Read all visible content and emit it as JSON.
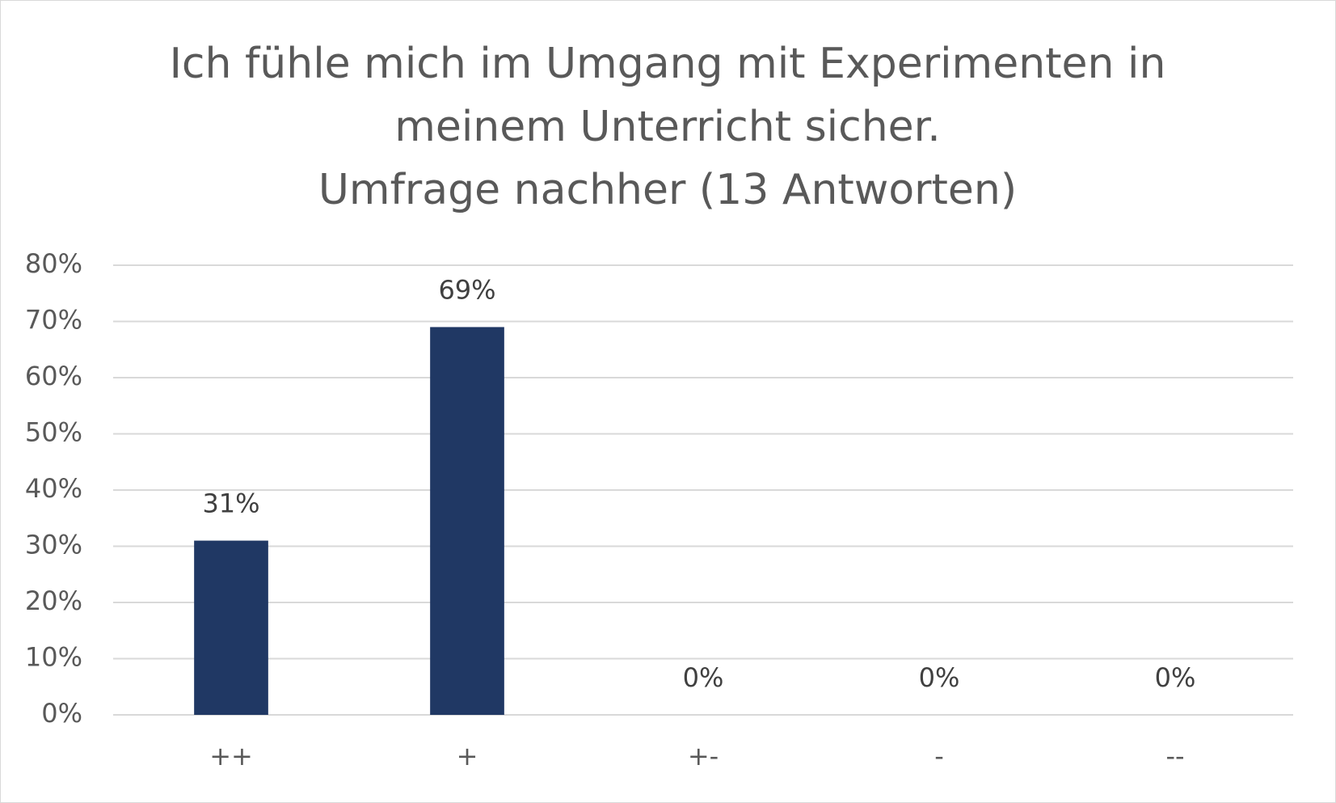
{
  "chart_data": {
    "type": "bar",
    "title": "Ich fühle mich im Umgang mit Experimenten in meinem Unterricht sicher.",
    "subtitle": "Umfrage nachher (13 Antworten)",
    "categories": [
      "++",
      "+",
      "+-",
      "-",
      "--"
    ],
    "values": [
      31,
      69,
      0,
      0,
      0
    ],
    "value_labels": [
      "31%",
      "69%",
      "0%",
      "0%",
      "0%"
    ],
    "color": "#203864",
    "ylim": [
      0,
      80
    ],
    "yticks": [
      {
        "value": 0,
        "label": "0%"
      },
      {
        "value": 10,
        "label": "10%"
      },
      {
        "value": 20,
        "label": "20%"
      },
      {
        "value": 30,
        "label": "30%"
      },
      {
        "value": 40,
        "label": "40%"
      },
      {
        "value": 50,
        "label": "50%"
      },
      {
        "value": 60,
        "label": "60%"
      },
      {
        "value": 70,
        "label": "70%"
      },
      {
        "value": 80,
        "label": "80%"
      }
    ],
    "grid": true
  }
}
